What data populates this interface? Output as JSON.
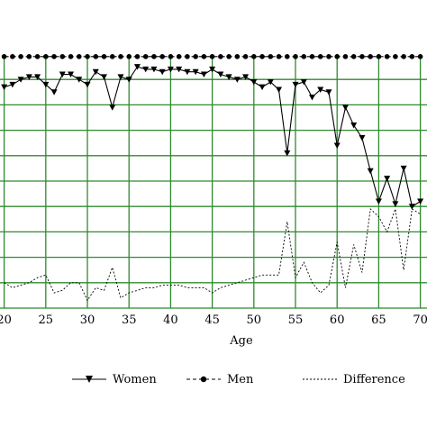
{
  "chart_data": {
    "type": "line",
    "xlabel": "Age",
    "ylabel": "",
    "title": "",
    "x_ticks": [
      20,
      25,
      30,
      35,
      40,
      45,
      50,
      55,
      60,
      65,
      70
    ],
    "x_tick_labels": [
      "20",
      "25",
      "30",
      "35",
      "40",
      "45",
      "50",
      "55",
      "60",
      "65",
      "70"
    ],
    "xlim": [
      19.5,
      70.8
    ],
    "ylim": [
      0,
      10
    ],
    "y_gridlines": [
      1,
      2,
      3,
      4,
      5,
      6,
      7,
      8,
      9
    ],
    "grid": true,
    "grid_color": "#2e8b2e",
    "legend_position": "bottom",
    "series": [
      {
        "name": "Women",
        "style": "solid",
        "marker": "triangle-down",
        "x": [
          20,
          21,
          22,
          23,
          24,
          25,
          26,
          27,
          28,
          29,
          30,
          31,
          32,
          33,
          34,
          35,
          36,
          37,
          38,
          39,
          40,
          41,
          42,
          43,
          44,
          45,
          46,
          47,
          48,
          49,
          50,
          51,
          52,
          53,
          54,
          55,
          56,
          57,
          58,
          59,
          60,
          61,
          62,
          63,
          64,
          65,
          66,
          67,
          68,
          69,
          70
        ],
        "values": [
          8.7,
          8.8,
          9.0,
          9.1,
          9.1,
          8.8,
          8.5,
          9.2,
          9.2,
          9.0,
          8.8,
          9.3,
          9.1,
          7.9,
          9.1,
          9.0,
          9.5,
          9.4,
          9.4,
          9.3,
          9.4,
          9.4,
          9.3,
          9.3,
          9.2,
          9.4,
          9.2,
          9.1,
          9.0,
          9.1,
          8.9,
          8.7,
          8.9,
          8.6,
          6.1,
          8.8,
          8.9,
          8.3,
          8.6,
          8.5,
          6.4,
          7.9,
          7.2,
          6.7,
          5.4,
          4.2,
          5.1,
          4.1,
          5.5,
          4.0,
          4.2
        ]
      },
      {
        "name": "Men",
        "style": "dashed",
        "marker": "circle",
        "x": [
          20,
          21,
          22,
          23,
          24,
          25,
          26,
          27,
          28,
          29,
          30,
          31,
          32,
          33,
          34,
          35,
          36,
          37,
          38,
          39,
          40,
          41,
          42,
          43,
          44,
          45,
          46,
          47,
          48,
          49,
          50,
          51,
          52,
          53,
          54,
          55,
          56,
          57,
          58,
          59,
          60,
          61,
          62,
          63,
          64,
          65,
          66,
          67,
          68,
          69,
          70
        ],
        "values": [
          9.9,
          9.9,
          9.9,
          9.9,
          9.9,
          9.9,
          9.9,
          9.9,
          9.9,
          9.9,
          9.9,
          9.9,
          9.9,
          9.9,
          9.9,
          9.9,
          9.9,
          9.9,
          9.9,
          9.9,
          9.9,
          9.9,
          9.9,
          9.9,
          9.9,
          9.9,
          9.9,
          9.9,
          9.9,
          9.9,
          9.9,
          9.9,
          9.9,
          9.9,
          9.9,
          9.9,
          9.9,
          9.9,
          9.9,
          9.9,
          9.9,
          9.9,
          9.9,
          9.9,
          9.9,
          9.9,
          9.9,
          9.9,
          9.9,
          9.9,
          9.9
        ]
      },
      {
        "name": "Difference",
        "style": "dotted",
        "marker": "none",
        "x": [
          20,
          21,
          22,
          23,
          24,
          25,
          26,
          27,
          28,
          29,
          30,
          31,
          32,
          33,
          34,
          35,
          36,
          37,
          38,
          39,
          40,
          41,
          42,
          43,
          44,
          45,
          46,
          47,
          48,
          49,
          50,
          51,
          52,
          53,
          54,
          55,
          56,
          57,
          58,
          59,
          60,
          61,
          62,
          63,
          64,
          65,
          66,
          67,
          68,
          69,
          70
        ],
        "values": [
          1.0,
          0.8,
          0.9,
          1.0,
          1.2,
          1.3,
          0.6,
          0.7,
          1.0,
          1.0,
          0.3,
          0.8,
          0.7,
          1.6,
          0.4,
          0.6,
          0.7,
          0.8,
          0.8,
          0.9,
          0.9,
          0.9,
          0.8,
          0.8,
          0.8,
          0.6,
          0.8,
          0.9,
          1.0,
          1.1,
          1.2,
          1.3,
          1.3,
          1.3,
          3.4,
          1.2,
          1.8,
          1.0,
          0.6,
          0.9,
          2.6,
          0.8,
          2.5,
          1.4,
          3.9,
          3.6,
          3.0,
          3.9,
          1.5,
          3.9,
          3.7
        ]
      }
    ]
  }
}
